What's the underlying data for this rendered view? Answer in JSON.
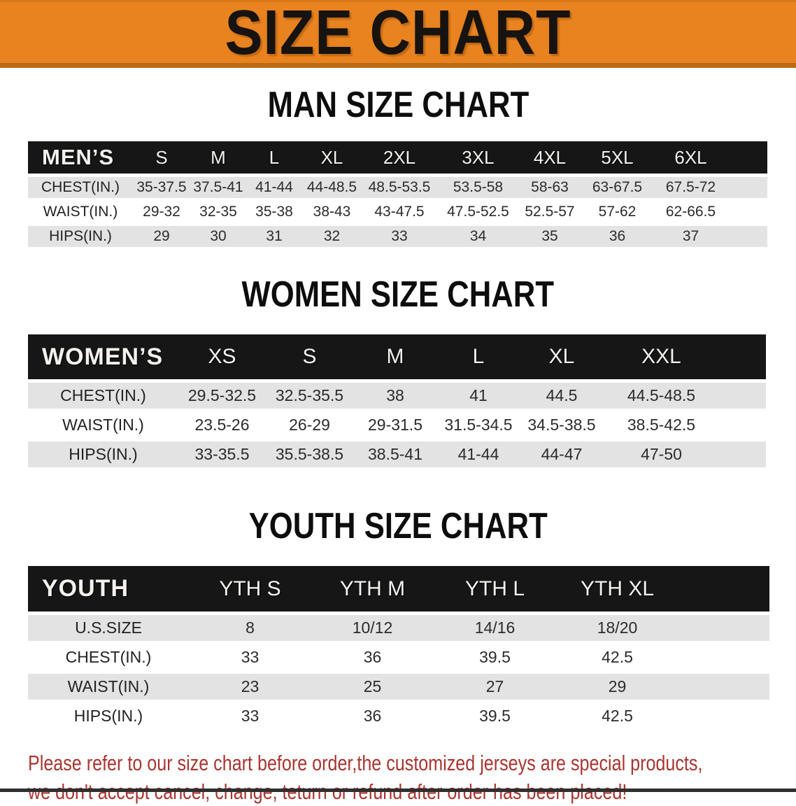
{
  "banner": {
    "title": "SIZE CHART"
  },
  "colors": {
    "banner_orange": "#E8831F",
    "banner_border": "#BA6A14",
    "header_band_black": "#161616",
    "row_stripe_gray": "#E3E3E3",
    "table_text": "#2B2B2B",
    "footer_red": "#A93530"
  },
  "sections": {
    "men": {
      "heading": "MAN SIZE CHART",
      "corner": "MEN’S",
      "sizes": [
        "S",
        "M",
        "L",
        "XL",
        "2XL",
        "3XL",
        "4XL",
        "5XL",
        "6XL"
      ],
      "rows": [
        {
          "label": "CHEST(IN.)",
          "values": [
            "35-37.5",
            "37.5-41",
            "41-44",
            "44-48.5",
            "48.5-53.5",
            "53.5-58",
            "58-63",
            "63-67.5",
            "67.5-72"
          ]
        },
        {
          "label": "WAIST(IN.)",
          "values": [
            "29-32",
            "32-35",
            "35-38",
            "38-43",
            "43-47.5",
            "47.5-52.5",
            "52.5-57",
            "57-62",
            "62-66.5"
          ]
        },
        {
          "label": "HIPS(IN.)",
          "values": [
            "29",
            "30",
            "31",
            "32",
            "33",
            "34",
            "35",
            "36",
            "37"
          ]
        }
      ]
    },
    "women": {
      "heading": "WOMEN SIZE CHART",
      "corner": "WOMEN’S",
      "sizes": [
        "XS",
        "S",
        "M",
        "L",
        "XL",
        "XXL"
      ],
      "rows": [
        {
          "label": "CHEST(IN.)",
          "values": [
            "29.5-32.5",
            "32.5-35.5",
            "38",
            "41",
            "44.5",
            "44.5-48.5"
          ]
        },
        {
          "label": "WAIST(IN.)",
          "values": [
            "23.5-26",
            "26-29",
            "29-31.5",
            "31.5-34.5",
            "34.5-38.5",
            "38.5-42.5"
          ]
        },
        {
          "label": "HIPS(IN.)",
          "values": [
            "33-35.5",
            "35.5-38.5",
            "38.5-41",
            "41-44",
            "44-47",
            "47-50"
          ]
        }
      ]
    },
    "youth": {
      "heading": "YOUTH SIZE CHART",
      "corner": "YOUTH",
      "sizes": [
        "YTH S",
        "YTH M",
        "YTH L",
        "YTH XL"
      ],
      "rows": [
        {
          "label": "U.S.SIZE",
          "values": [
            "8",
            "10/12",
            "14/16",
            "18/20"
          ]
        },
        {
          "label": "CHEST(IN.)",
          "values": [
            "33",
            "36",
            "39.5",
            "42.5"
          ]
        },
        {
          "label": "WAIST(IN.)",
          "values": [
            "23",
            "25",
            "27",
            "29"
          ]
        },
        {
          "label": "HIPS(IN.)",
          "values": [
            "33",
            "36",
            "39.5",
            "42.5"
          ]
        }
      ]
    }
  },
  "footer": {
    "line1": "Please refer to our size chart before order,the customized jerseys are special products,",
    "line2": "we don't accept cancel, change, teturn or refund after order has been placed!"
  }
}
